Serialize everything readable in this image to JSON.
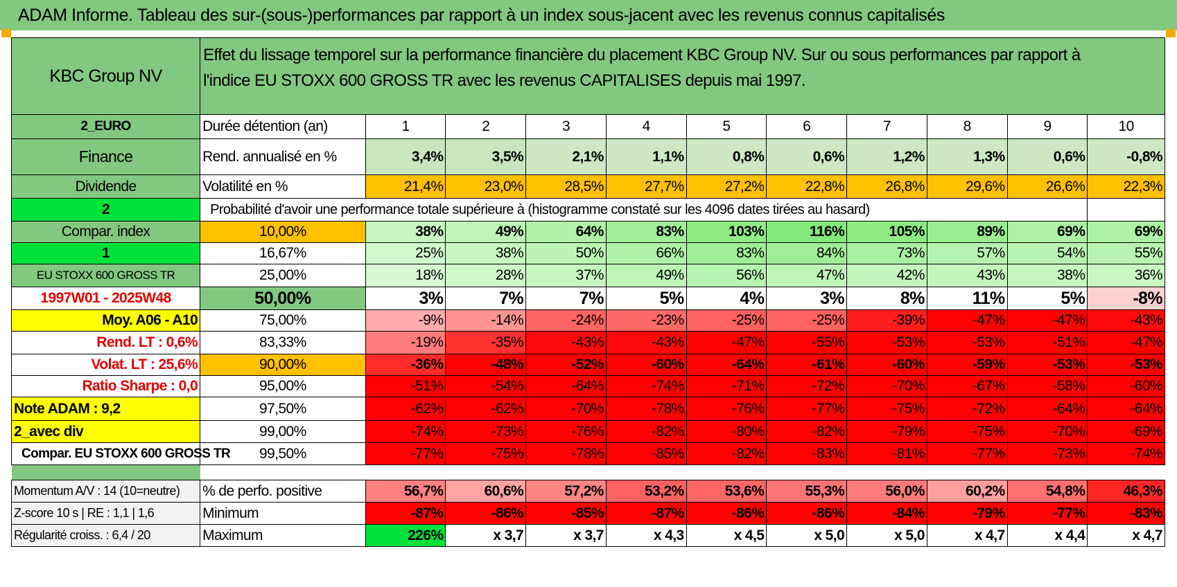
{
  "banner": "ADAM Informe. Tableau des sur-(sous-)performances par rapport à un index sous-jacent avec les revenus connus capitalisés",
  "header": {
    "company": "KBC Group NV",
    "description_line1": "Effet du lissage temporel sur la performance financière du placement KBC Group NV. Sur ou sous performances par rapport à",
    "description_line2": "l'indice EU STOXX 600 GROSS TR avec les revenus CAPITALISES depuis mai 1997."
  },
  "years": [
    "1",
    "2",
    "3",
    "4",
    "5",
    "6",
    "7",
    "8",
    "9",
    "10"
  ],
  "rows": {
    "duree": {
      "side": "2_EURO",
      "label": "Durée détention (an)"
    },
    "rend": {
      "side": "Finance",
      "label": "Rend. annualisé en %",
      "values": [
        "3,4%",
        "3,5%",
        "2,1%",
        "1,1%",
        "0,8%",
        "0,6%",
        "1,2%",
        "1,3%",
        "0,6%",
        "-0,8%"
      ]
    },
    "vol": {
      "side": "Dividende",
      "label": "Volatilité en %",
      "values": [
        "21,4%",
        "23,0%",
        "28,5%",
        "27,7%",
        "27,2%",
        "22,8%",
        "26,8%",
        "29,6%",
        "26,6%",
        "22,3%"
      ]
    },
    "prob": {
      "side": "2",
      "label": "Probabilité d'avoir une performance totale supérieure à (histogramme constaté sur les 4096 dates tirées au hasard)"
    }
  },
  "quantile_rows": [
    {
      "side": "Compar. index",
      "q": "10,00%",
      "values": [
        "38%",
        "49%",
        "64%",
        "83%",
        "103%",
        "116%",
        "105%",
        "89%",
        "69%",
        "69%"
      ]
    },
    {
      "side": "1",
      "q": "16,67%",
      "values": [
        "25%",
        "38%",
        "50%",
        "66%",
        "83%",
        "84%",
        "73%",
        "57%",
        "54%",
        "55%"
      ]
    },
    {
      "side": "EU STOXX 600 GROSS TR",
      "q": "25,00%",
      "values": [
        "18%",
        "28%",
        "37%",
        "49%",
        "56%",
        "47%",
        "42%",
        "43%",
        "38%",
        "36%"
      ]
    },
    {
      "side": "1997W01 - 2025W48",
      "q": "50,00%",
      "values": [
        "3%",
        "7%",
        "7%",
        "5%",
        "4%",
        "3%",
        "8%",
        "11%",
        "5%",
        "-8%"
      ]
    },
    {
      "side": "Moy. A06 - A10",
      "q": "75,00%",
      "values": [
        "-9%",
        "-14%",
        "-24%",
        "-23%",
        "-25%",
        "-25%",
        "-39%",
        "-47%",
        "-47%",
        "-43%"
      ]
    },
    {
      "side": "Rend. LT :    0,6%",
      "q": "83,33%",
      "values": [
        "-19%",
        "-35%",
        "-43%",
        "-43%",
        "-47%",
        "-55%",
        "-53%",
        "-53%",
        "-51%",
        "-47%"
      ]
    },
    {
      "side": "Volat. LT :    25,6%",
      "q": "90,00%",
      "values": [
        "-36%",
        "-48%",
        "-52%",
        "-60%",
        "-64%",
        "-61%",
        "-60%",
        "-59%",
        "-53%",
        "-53%"
      ]
    },
    {
      "side": "Ratio Sharpe :    0,0",
      "q": "95,00%",
      "values": [
        "-51%",
        "-54%",
        "-64%",
        "-74%",
        "-71%",
        "-72%",
        "-70%",
        "-67%",
        "-58%",
        "-60%"
      ]
    },
    {
      "side": "Note ADAM : 9,2",
      "q": "97,50%",
      "values": [
        "-62%",
        "-62%",
        "-70%",
        "-78%",
        "-76%",
        "-77%",
        "-75%",
        "-72%",
        "-64%",
        "-64%"
      ]
    },
    {
      "side": "2_avec div",
      "q": "99,00%",
      "values": [
        "-74%",
        "-73%",
        "-76%",
        "-82%",
        "-80%",
        "-82%",
        "-79%",
        "-75%",
        "-70%",
        "-69%"
      ]
    },
    {
      "side": "Compar. EU STOXX 600 GROSS TR",
      "q": "99,50%",
      "values": [
        "-77%",
        "-75%",
        "-78%",
        "-85%",
        "-82%",
        "-83%",
        "-81%",
        "-77%",
        "-73%",
        "-74%"
      ]
    }
  ],
  "bottom_rows": [
    {
      "side": "Momentum A/V : 14 (10=neutre)",
      "label": "% de perfo. positive",
      "values": [
        "56,7%",
        "60,6%",
        "57,2%",
        "53,2%",
        "53,6%",
        "55,3%",
        "56,0%",
        "60,2%",
        "54,8%",
        "46,3%"
      ]
    },
    {
      "side": "Z-score 10 s | RE : 1,1  | 1,6",
      "label": "Minimum",
      "values": [
        "-87%",
        "-86%",
        "-85%",
        "-87%",
        "-86%",
        "-86%",
        "-84%",
        "-79%",
        "-77%",
        "-83%"
      ]
    },
    {
      "side": "Régularité croiss. : 6,4 / 20",
      "label": "Maximum",
      "values": [
        "226%",
        "x 3,7",
        "x 3,7",
        "x 4,3",
        "x 4,5",
        "x 5,0",
        "x 5,0",
        "x 4,7",
        "x 4,4",
        "x 4,7"
      ]
    }
  ],
  "colors": {
    "header_green": "#82c881",
    "bright_green": "#00e13c",
    "yellow": "#ffff00",
    "orange": "#ffc000",
    "red": "#ff0000",
    "quantile_row_colors": [
      [
        "#d9f7d5",
        "#c8f3c2",
        "#b6f0ae",
        "#a0ec95",
        "#8fe983",
        "#84e776",
        "#8be87e",
        "#9deb92",
        "#b2ef a8",
        "#b2efa8"
      ]
    ]
  }
}
